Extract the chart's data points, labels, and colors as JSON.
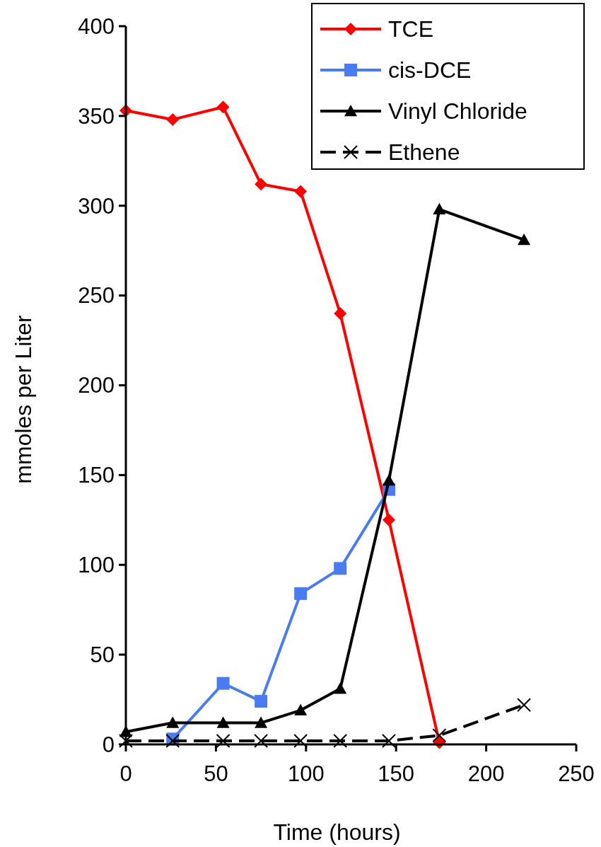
{
  "chart_data": {
    "type": "line",
    "xlabel": "Time (hours)",
    "ylabel": "mmoles per Liter",
    "xlim": [
      0,
      250
    ],
    "ylim": [
      0,
      400
    ],
    "xticks": [
      0,
      50,
      100,
      150,
      200,
      250
    ],
    "yticks": [
      0,
      50,
      100,
      150,
      200,
      250,
      300,
      350,
      400
    ],
    "grid": false,
    "legend": "top right",
    "series": [
      {
        "name": "TCE",
        "color": "#ff0000",
        "marker": "diamond",
        "line_style": "solid",
        "x": [
          0,
          26,
          54,
          75,
          97,
          119,
          146,
          174
        ],
        "values": [
          353,
          348,
          355,
          312,
          308,
          240,
          125,
          1
        ]
      },
      {
        "name": "cis-DCE",
        "color": "#4a7bf0",
        "marker": "square",
        "line_style": "solid",
        "x": [
          26,
          54,
          75,
          97,
          119,
          146
        ],
        "values": [
          3,
          34,
          24,
          84,
          98,
          142
        ]
      },
      {
        "name": "Vinyl Chloride",
        "color": "#000000",
        "marker": "triangle",
        "line_style": "solid",
        "x": [
          0,
          26,
          54,
          75,
          97,
          119,
          146,
          174,
          221
        ],
        "values": [
          7,
          12,
          12,
          12,
          19,
          31,
          147,
          298,
          281
        ]
      },
      {
        "name": "Ethene",
        "color": "#000000",
        "marker": "cross",
        "line_style": "dashed",
        "x": [
          0,
          26,
          54,
          75,
          97,
          119,
          146,
          174,
          221
        ],
        "values": [
          2,
          2,
          2,
          2,
          2,
          2,
          2,
          5,
          22
        ]
      }
    ]
  }
}
